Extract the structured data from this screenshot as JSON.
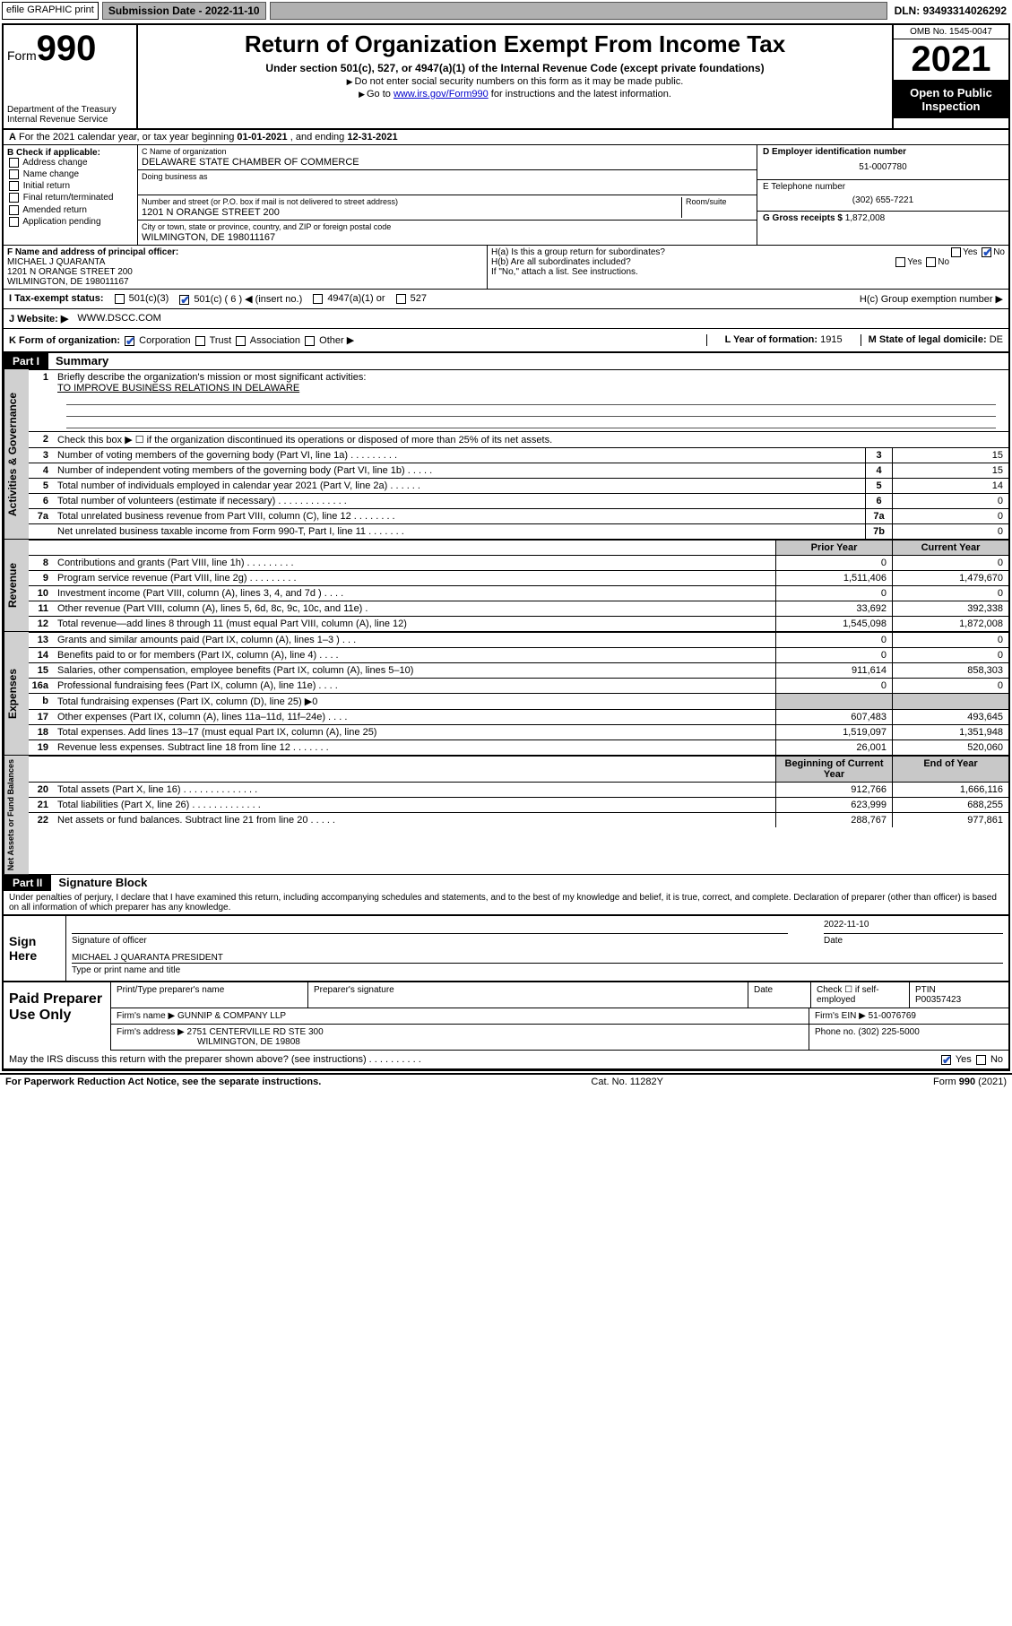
{
  "topbar": {
    "efile_label": "efile GRAPHIC print",
    "submission_label": "Submission Date - 2022-11-10",
    "dln": "DLN: 93493314026292"
  },
  "header": {
    "form_label": "Form",
    "form_num": "990",
    "dept": "Department of the Treasury",
    "irs": "Internal Revenue Service",
    "title": "Return of Organization Exempt From Income Tax",
    "sub": "Under section 501(c), 527, or 4947(a)(1) of the Internal Revenue Code (except private foundations)",
    "line1": "Do not enter social security numbers on this form as it may be made public.",
    "line2_pre": "Go to ",
    "line2_link": "www.irs.gov/Form990",
    "line2_post": " for instructions and the latest information.",
    "omb": "OMB No. 1545-0047",
    "year": "2021",
    "open": "Open to Public Inspection"
  },
  "period": {
    "text_a": "For the 2021 calendar year, or tax year beginning ",
    "begin": "01-01-2021",
    "text_b": " , and ending ",
    "end": "12-31-2021"
  },
  "boxB": {
    "title": "B Check if applicable:",
    "items": [
      "Address change",
      "Name change",
      "Initial return",
      "Final return/terminated",
      "Amended return",
      "Application pending"
    ]
  },
  "boxC": {
    "name_label": "C Name of organization",
    "name": "DELAWARE STATE CHAMBER OF COMMERCE",
    "dba_label": "Doing business as",
    "dba": "",
    "addr_label": "Number and street (or P.O. box if mail is not delivered to street address)",
    "room_label": "Room/suite",
    "addr": "1201 N ORANGE STREET 200",
    "city_label": "City or town, state or province, country, and ZIP or foreign postal code",
    "city": "WILMINGTON, DE  198011167"
  },
  "boxD": {
    "label": "D Employer identification number",
    "val": "51-0007780"
  },
  "boxE": {
    "label": "E Telephone number",
    "val": "(302) 655-7221"
  },
  "boxG": {
    "label": "G Gross receipts $",
    "val": "1,872,008"
  },
  "boxF": {
    "label": "F  Name and address of principal officer:",
    "name": "MICHAEL J QUARANTA",
    "addr1": "1201 N ORANGE STREET 200",
    "addr2": "WILMINGTON, DE  198011167"
  },
  "boxH": {
    "ha": "H(a)  Is this a group return for subordinates?",
    "hb": "H(b)  Are all subordinates included?",
    "hb_note": "If \"No,\" attach a list. See instructions.",
    "hc": "H(c)  Group exemption number ▶",
    "yes": "Yes",
    "no": "No"
  },
  "boxI": {
    "label": "I     Tax-exempt status:",
    "o1": "501(c)(3)",
    "o2": "501(c) ( 6 ) ◀ (insert no.)",
    "o3": "4947(a)(1) or",
    "o4": "527"
  },
  "boxJ": {
    "label": "J    Website: ▶",
    "val": "WWW.DSCC.COM"
  },
  "boxK": {
    "label": "K Form of organization:",
    "o1": "Corporation",
    "o2": "Trust",
    "o3": "Association",
    "o4": "Other ▶"
  },
  "boxL": {
    "label": "L Year of formation:",
    "val": "1915"
  },
  "boxM": {
    "label": "M State of legal domicile:",
    "val": "DE"
  },
  "part1": {
    "bar": "Part I",
    "title": "Summary"
  },
  "summary": {
    "l1_label": "Briefly describe the organization's mission or most significant activities:",
    "l1_val": "TO IMPROVE BUSINESS RELATIONS IN DELAWARE",
    "l2": "Check this box ▶ ☐  if the organization discontinued its operations or disposed of more than 25% of its net assets.",
    "rows_single": [
      {
        "n": "3",
        "t": "Number of voting members of the governing body (Part VI, line 1a)   .    .    .    .    .    .    .    .    .",
        "b": "3",
        "v": "15"
      },
      {
        "n": "4",
        "t": "Number of independent voting members of the governing body (Part VI, line 1b)   .    .    .    .    .",
        "b": "4",
        "v": "15"
      },
      {
        "n": "5",
        "t": "Total number of individuals employed in calendar year 2021 (Part V, line 2a)   .    .    .    .    .    .",
        "b": "5",
        "v": "14"
      },
      {
        "n": "6",
        "t": "Total number of volunteers (estimate if necessary)   .    .    .    .    .    .    .    .    .    .    .    .    .",
        "b": "6",
        "v": "0"
      },
      {
        "n": "7a",
        "t": "Total unrelated business revenue from Part VIII, column (C), line 12   .    .    .    .    .    .    .    .",
        "b": "7a",
        "v": "0"
      },
      {
        "n": "",
        "t": "Net unrelated business taxable income from Form 990-T, Part I, line 11   .    .    .    .    .    .    .",
        "b": "7b",
        "v": "0"
      }
    ],
    "col_prior": "Prior Year",
    "col_current": "Current Year",
    "revenue": [
      {
        "n": "8",
        "t": "Contributions and grants (Part VIII, line 1h)   .    .    .    .    .    .    .    .    .",
        "p": "0",
        "c": "0"
      },
      {
        "n": "9",
        "t": "Program service revenue (Part VIII, line 2g)   .    .    .    .    .    .    .    .    .",
        "p": "1,511,406",
        "c": "1,479,670"
      },
      {
        "n": "10",
        "t": "Investment income (Part VIII, column (A), lines 3, 4, and 7d )   .    .    .    .",
        "p": "0",
        "c": "0"
      },
      {
        "n": "11",
        "t": "Other revenue (Part VIII, column (A), lines 5, 6d, 8c, 9c, 10c, and 11e)   .",
        "p": "33,692",
        "c": "392,338"
      },
      {
        "n": "12",
        "t": "Total revenue—add lines 8 through 11 (must equal Part VIII, column (A), line 12)",
        "p": "1,545,098",
        "c": "1,872,008"
      }
    ],
    "expenses": [
      {
        "n": "13",
        "t": "Grants and similar amounts paid (Part IX, column (A), lines 1–3 )   .    .    .",
        "p": "0",
        "c": "0"
      },
      {
        "n": "14",
        "t": "Benefits paid to or for members (Part IX, column (A), line 4)   .    .    .    .",
        "p": "0",
        "c": "0"
      },
      {
        "n": "15",
        "t": "Salaries, other compensation, employee benefits (Part IX, column (A), lines 5–10)",
        "p": "911,614",
        "c": "858,303"
      },
      {
        "n": "16a",
        "t": "Professional fundraising fees (Part IX, column (A), line 11e)   .    .    .    .",
        "p": "0",
        "c": "0"
      },
      {
        "n": "b",
        "t": "Total fundraising expenses (Part IX, column (D), line 25) ▶0",
        "p": "",
        "c": "",
        "shade": true
      },
      {
        "n": "17",
        "t": "Other expenses (Part IX, column (A), lines 11a–11d, 11f–24e)   .    .    .    .",
        "p": "607,483",
        "c": "493,645"
      },
      {
        "n": "18",
        "t": "Total expenses. Add lines 13–17 (must equal Part IX, column (A), line 25)",
        "p": "1,519,097",
        "c": "1,351,948"
      },
      {
        "n": "19",
        "t": "Revenue less expenses. Subtract line 18 from line 12   .    .    .    .    .    .    .",
        "p": "26,001",
        "c": "520,060"
      }
    ],
    "col_begin": "Beginning of Current Year",
    "col_end": "End of Year",
    "netassets": [
      {
        "n": "20",
        "t": "Total assets (Part X, line 16)   .    .    .    .    .    .    .    .    .    .    .    .    .    .",
        "p": "912,766",
        "c": "1,666,116"
      },
      {
        "n": "21",
        "t": "Total liabilities (Part X, line 26)   .    .    .    .    .    .    .    .    .    .    .    .    .",
        "p": "623,999",
        "c": "688,255"
      },
      {
        "n": "22",
        "t": "Net assets or fund balances. Subtract line 21 from line 20   .    .    .    .    .",
        "p": "288,767",
        "c": "977,861"
      }
    ],
    "side_ag": "Activities & Governance",
    "side_rev": "Revenue",
    "side_exp": "Expenses",
    "side_na": "Net Assets or Fund Balances"
  },
  "part2": {
    "bar": "Part II",
    "title": "Signature Block"
  },
  "sig": {
    "perjury": "Under penalties of perjury, I declare that I have examined this return, including accompanying schedules and statements, and to the best of my knowledge and belief, it is true, correct, and complete. Declaration of preparer (other than officer) is based on all information of which preparer has any knowledge.",
    "sign_here": "Sign Here",
    "sig_officer": "Signature of officer",
    "date_label": "Date",
    "date_val": "2022-11-10",
    "officer_name": "MICHAEL J QUARANTA  PRESIDENT",
    "type_name": "Type or print name and title"
  },
  "prep": {
    "label": "Paid Preparer Use Only",
    "h_print": "Print/Type preparer's name",
    "h_sig": "Preparer's signature",
    "h_date": "Date",
    "h_check": "Check ☐ if self-employed",
    "h_ptin": "PTIN",
    "ptin": "P00357423",
    "firm_name_l": "Firm's name     ▶",
    "firm_name": "GUNNIP & COMPANY LLP",
    "firm_ein_l": "Firm's EIN ▶",
    "firm_ein": "51-0076769",
    "firm_addr_l": "Firm's address ▶",
    "firm_addr": "2751 CENTERVILLE RD STE 300",
    "firm_city": "WILMINGTON, DE  19808",
    "phone_l": "Phone no.",
    "phone": "(302) 225-5000"
  },
  "foot": {
    "discuss": "May the IRS discuss this return with the preparer shown above? (see instructions)   .    .    .    .    .    .    .    .    .    .",
    "yes": "Yes",
    "no": "No",
    "pra": "For Paperwork Reduction Act Notice, see the separate instructions.",
    "cat": "Cat. No. 11282Y",
    "form": "Form 990 (2021)"
  }
}
